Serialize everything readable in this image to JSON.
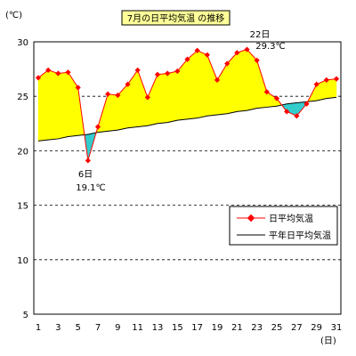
{
  "chart_data": {
    "type": "line",
    "title": "7月の日平均気温 の推移",
    "yunit": "(℃)",
    "xunit": "(日)",
    "ylim": [
      5,
      30
    ],
    "yticks": [
      5,
      10,
      15,
      20,
      25,
      30
    ],
    "xlim": [
      1,
      31
    ],
    "xticks": [
      1,
      3,
      5,
      7,
      9,
      11,
      13,
      15,
      17,
      19,
      21,
      23,
      25,
      27,
      29,
      31
    ],
    "grid": "horizontal-dashed",
    "legend_position": "lower-right",
    "colors": {
      "above": "#ffff00",
      "below": "#33cccc",
      "daily": "#ff0000",
      "normal": "#000000"
    },
    "series": [
      {
        "name": "日平均気温",
        "x": [
          1,
          2,
          3,
          4,
          5,
          6,
          7,
          8,
          9,
          10,
          11,
          12,
          13,
          14,
          15,
          16,
          17,
          18,
          19,
          20,
          21,
          22,
          23,
          24,
          25,
          26,
          27,
          28,
          29,
          30,
          31
        ],
        "values": [
          26.7,
          27.4,
          27.1,
          27.2,
          25.8,
          19.1,
          22.2,
          25.2,
          25.1,
          26.1,
          27.4,
          24.9,
          27.0,
          27.1,
          27.3,
          28.4,
          29.2,
          28.8,
          26.5,
          28.0,
          29.0,
          29.3,
          28.3,
          25.4,
          24.8,
          23.6,
          23.2,
          24.3,
          26.1,
          26.5,
          26.6
        ]
      },
      {
        "name": "平年日平均気温",
        "x": [
          1,
          2,
          3,
          4,
          5,
          6,
          7,
          8,
          9,
          10,
          11,
          12,
          13,
          14,
          15,
          16,
          17,
          18,
          19,
          20,
          21,
          22,
          23,
          24,
          25,
          26,
          27,
          28,
          29,
          30,
          31
        ],
        "values": [
          20.9,
          21.0,
          21.1,
          21.3,
          21.4,
          21.5,
          21.7,
          21.8,
          21.9,
          22.1,
          22.2,
          22.3,
          22.5,
          22.6,
          22.8,
          22.9,
          23.0,
          23.2,
          23.3,
          23.4,
          23.6,
          23.7,
          23.9,
          24.0,
          24.1,
          24.3,
          24.4,
          24.5,
          24.6,
          24.8,
          24.9
        ]
      }
    ],
    "annotations": [
      {
        "day_label": "6日",
        "value_label": "19.1℃"
      },
      {
        "day_label": "22日",
        "value_label": "29.3℃"
      }
    ]
  }
}
